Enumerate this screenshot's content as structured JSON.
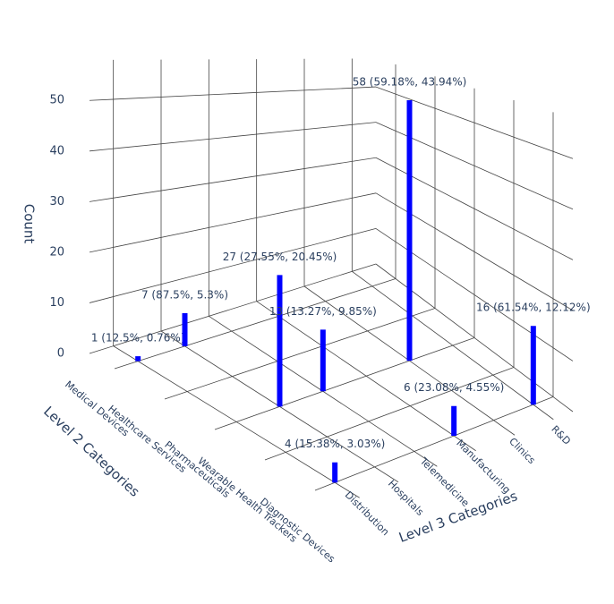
{
  "chart_data": {
    "type": "bar3d",
    "xaxis_title": "Level 2 Categories",
    "yaxis_title": "Level 3 Categories",
    "zaxis_title": "Count",
    "x_categories": [
      "Medical Devices",
      "Healthcare Services",
      "Pharmaceuticals",
      "Wearable Health Trackers",
      "Diagnostic Devices"
    ],
    "y_categories": [
      "Distribution",
      "Hospitals",
      "Telemedicine",
      "Manufacturing",
      "Clinics",
      "R&D"
    ],
    "values": [
      [
        1,
        7,
        null,
        null,
        null,
        null
      ],
      [
        null,
        null,
        null,
        null,
        null,
        null
      ],
      [
        null,
        27,
        13,
        null,
        58,
        null
      ],
      [
        null,
        null,
        null,
        null,
        null,
        null
      ],
      [
        4,
        null,
        null,
        6,
        null,
        16
      ]
    ],
    "value_labels": [
      [
        "1 (12.5%, 0.76%)",
        "7 (87.5%, 5.3%)",
        null,
        null,
        null,
        null
      ],
      [
        null,
        null,
        null,
        null,
        null,
        null
      ],
      [
        null,
        "27 (27.55%, 20.45%)",
        "13 (13.27%, 9.85%)",
        null,
        "58 (59.18%, 43.94%)",
        null
      ],
      [
        null,
        null,
        null,
        null,
        null,
        null
      ],
      [
        "4 (15.38%, 3.03%)",
        null,
        null,
        "6 (23.08%, 4.55%)",
        null,
        "16 (61.54%, 12.12%)"
      ]
    ],
    "zlim": [
      0,
      58
    ],
    "zticks": [
      0,
      10,
      20,
      30,
      40,
      50
    ],
    "color": "#0000ff",
    "grid": true
  }
}
